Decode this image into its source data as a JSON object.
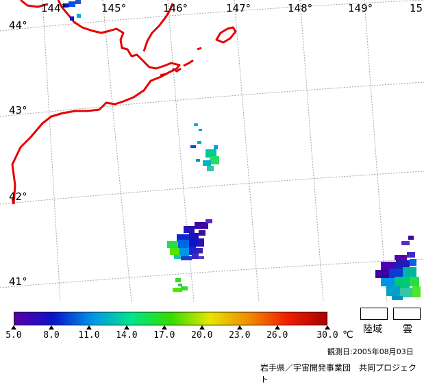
{
  "longitude_labels": [
    "144°",
    "145°",
    "146°",
    "147°",
    "148°",
    "149°",
    "15"
  ],
  "latitude_labels": [
    "44°",
    "43°",
    "42°",
    "41°"
  ],
  "colorbar": {
    "ticks": [
      "5.0",
      "8.0",
      "11.0",
      "14.0",
      "17.0",
      "20.0",
      "23.0",
      "26.0",
      "30.0"
    ],
    "unit": "℃",
    "range": [
      5,
      30
    ],
    "colors": [
      "#5a00a8",
      "#0a14c8",
      "#0096e6",
      "#00e68c",
      "#32dc00",
      "#e6e600",
      "#f08c00",
      "#f01e00",
      "#aa0000"
    ]
  },
  "legend": {
    "land_label": "陸域",
    "cloud_label": "雲"
  },
  "observation_date": "観測日:2005年08月03日",
  "credit": "岩手県／宇宙開発事業団　共同プロジェクト",
  "colors": {
    "coastline": "#e60000",
    "grid": "#a0a0a0",
    "background": "#ffffff"
  }
}
